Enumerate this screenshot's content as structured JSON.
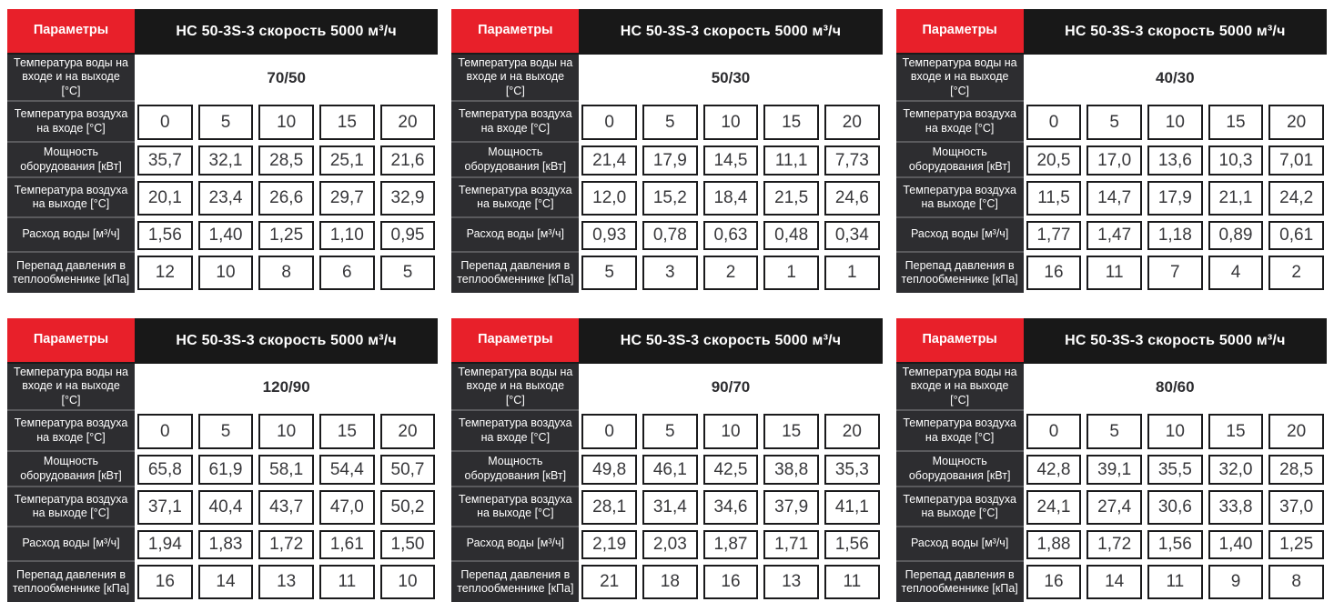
{
  "colors": {
    "accent_red": "#e8202a",
    "title_bar_bg": "#181818",
    "label_bg": "#2d2d30",
    "cell_border": "#1a1a1c",
    "value_text": "#37373a"
  },
  "labels": {
    "params": "Параметры",
    "model_title": "НС 50-3S-3 скорость 5000 м³/ч",
    "water_temp": "Температура воды на входе и на выходе [°C]",
    "air_in": "Температура воздуха на входе [°C]",
    "power": "Мощность оборудования [кВт]",
    "air_out": "Температура воздуха на выходе [°C]",
    "water_flow": "Расход воды [м³/ч]",
    "pressure_drop": "Перепад давления в теплообменнике [кПа]"
  },
  "air_in_values": [
    "0",
    "5",
    "10",
    "15",
    "20"
  ],
  "tables": [
    {
      "water_temp": "70/50",
      "power": [
        "35,7",
        "32,1",
        "28,5",
        "25,1",
        "21,6"
      ],
      "air_out": [
        "20,1",
        "23,4",
        "26,6",
        "29,7",
        "32,9"
      ],
      "water_flow": [
        "1,56",
        "1,40",
        "1,25",
        "1,10",
        "0,95"
      ],
      "pressure_drop": [
        "12",
        "10",
        "8",
        "6",
        "5"
      ]
    },
    {
      "water_temp": "50/30",
      "power": [
        "21,4",
        "17,9",
        "14,5",
        "11,1",
        "7,73"
      ],
      "air_out": [
        "12,0",
        "15,2",
        "18,4",
        "21,5",
        "24,6"
      ],
      "water_flow": [
        "0,93",
        "0,78",
        "0,63",
        "0,48",
        "0,34"
      ],
      "pressure_drop": [
        "5",
        "3",
        "2",
        "1",
        "1"
      ]
    },
    {
      "water_temp": "40/30",
      "power": [
        "20,5",
        "17,0",
        "13,6",
        "10,3",
        "7,01"
      ],
      "air_out": [
        "11,5",
        "14,7",
        "17,9",
        "21,1",
        "24,2"
      ],
      "water_flow": [
        "1,77",
        "1,47",
        "1,18",
        "0,89",
        "0,61"
      ],
      "pressure_drop": [
        "16",
        "11",
        "7",
        "4",
        "2"
      ]
    },
    {
      "water_temp": "120/90",
      "power": [
        "65,8",
        "61,9",
        "58,1",
        "54,4",
        "50,7"
      ],
      "air_out": [
        "37,1",
        "40,4",
        "43,7",
        "47,0",
        "50,2"
      ],
      "water_flow": [
        "1,94",
        "1,83",
        "1,72",
        "1,61",
        "1,50"
      ],
      "pressure_drop": [
        "16",
        "14",
        "13",
        "11",
        "10"
      ]
    },
    {
      "water_temp": "90/70",
      "power": [
        "49,8",
        "46,1",
        "42,5",
        "38,8",
        "35,3"
      ],
      "air_out": [
        "28,1",
        "31,4",
        "34,6",
        "37,9",
        "41,1"
      ],
      "water_flow": [
        "2,19",
        "2,03",
        "1,87",
        "1,71",
        "1,56"
      ],
      "pressure_drop": [
        "21",
        "18",
        "16",
        "13",
        "11"
      ]
    },
    {
      "water_temp": "80/60",
      "power": [
        "42,8",
        "39,1",
        "35,5",
        "32,0",
        "28,5"
      ],
      "air_out": [
        "24,1",
        "27,4",
        "30,6",
        "33,8",
        "37,0"
      ],
      "water_flow": [
        "1,88",
        "1,72",
        "1,56",
        "1,40",
        "1,25"
      ],
      "pressure_drop": [
        "16",
        "14",
        "11",
        "9",
        "8"
      ]
    }
  ]
}
